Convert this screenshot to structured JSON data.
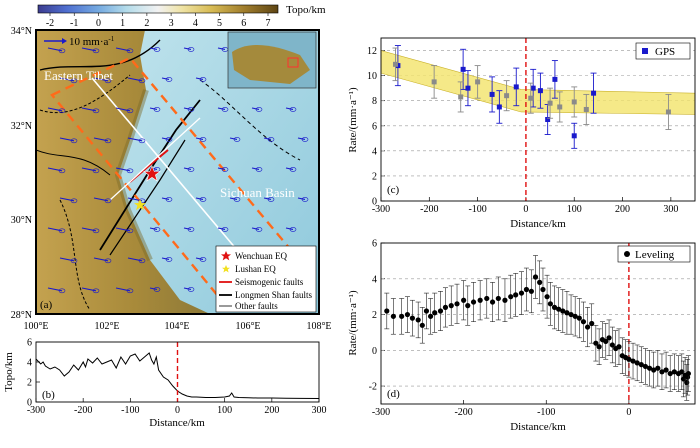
{
  "colors": {
    "gps_blue": "#1a1acc",
    "gps_gray": "#8a8a8a",
    "band_yellow": "#f2e36a",
    "dash_red": "#e01010",
    "cmap": [
      "#3c3c8f",
      "#4f6fd0",
      "#74a9e0",
      "#b4dcea",
      "#f2f2f2",
      "#efe3a4",
      "#d8bc55",
      "#a07d2c",
      "#5e4514"
    ]
  },
  "colorbar": {
    "ticks": [
      "-2",
      "-1",
      "0",
      "1",
      "2",
      "3",
      "4",
      "5",
      "6",
      "7"
    ],
    "unit": "Topo/km"
  },
  "map": {
    "panel_label": "(a)",
    "lat_labels": [
      "34°N",
      "32°N",
      "30°N",
      "28°N"
    ],
    "lon_labels": [
      "100°E",
      "102°E",
      "104°E",
      "106°E",
      "108°E"
    ],
    "scale_text": "10 mm·a",
    "scale_sup": "-1",
    "region_east_tibet": "Eastern Tibet",
    "region_sichuan": "Sichuan Basin",
    "legend": [
      "Wenchuan EQ",
      "Lushan EQ",
      "Seismogenic faults",
      "Longmen Shan faults",
      "Other faults"
    ]
  },
  "chart_data": [
    {
      "id": "b",
      "type": "line",
      "panel_label": "(b)",
      "xlabel": "Distance/km",
      "ylabel": "Topo/km",
      "xlim": [
        -300,
        300
      ],
      "ylim": [
        0,
        6
      ],
      "xticks": [
        -300,
        -200,
        -100,
        0,
        100,
        200,
        300
      ],
      "yticks": [
        0,
        2,
        4,
        6
      ],
      "x": [
        -300,
        -290,
        -285,
        -280,
        -270,
        -260,
        -250,
        -240,
        -230,
        -220,
        -210,
        -200,
        -195,
        -190,
        -180,
        -170,
        -160,
        -150,
        -140,
        -130,
        -120,
        -110,
        -100,
        -90,
        -80,
        -70,
        -60,
        -55,
        -50,
        -45,
        -40,
        -30,
        -20,
        -10,
        0,
        10,
        20,
        30,
        40,
        60,
        80,
        100,
        110,
        115,
        120,
        130,
        150,
        170,
        200,
        230,
        260,
        300
      ],
      "y": [
        4.3,
        3.8,
        4.0,
        3.6,
        3.3,
        3.5,
        3.2,
        2.6,
        3.0,
        3.7,
        3.2,
        4.0,
        3.5,
        4.3,
        3.9,
        4.4,
        3.8,
        4.0,
        4.2,
        3.4,
        4.5,
        3.8,
        4.6,
        4.8,
        4.1,
        4.5,
        4.9,
        4.2,
        3.8,
        4.5,
        3.2,
        2.5,
        2.2,
        1.6,
        1.1,
        0.8,
        0.6,
        0.5,
        0.5,
        0.45,
        0.45,
        0.5,
        0.6,
        0.9,
        0.5,
        0.45,
        0.42,
        0.4,
        0.4,
        0.38,
        0.36,
        0.35
      ]
    },
    {
      "id": "c",
      "type": "scatter",
      "panel_label": "(c)",
      "xlabel": "Distance/km",
      "ylabel": "Rate/(mm·a⁻¹)",
      "legend": "GPS",
      "xlim": [
        -300,
        350
      ],
      "ylim": [
        0,
        13
      ],
      "xticks": [
        -300,
        -200,
        -100,
        0,
        100,
        200,
        300
      ],
      "yticks": [
        0,
        2,
        4,
        6,
        8,
        10,
        12
      ],
      "band_upper": [
        [
          -300,
          12.0
        ],
        [
          -10,
          8.9
        ],
        [
          350,
          8.6
        ]
      ],
      "band_lower": [
        [
          -300,
          10.2
        ],
        [
          -10,
          7.1
        ],
        [
          350,
          6.9
        ]
      ],
      "series": [
        {
          "name": "blue",
          "points": [
            {
              "x": -265,
              "y": 10.8,
              "e": 1.6
            },
            {
              "x": -130,
              "y": 10.5,
              "e": 1.6
            },
            {
              "x": -120,
              "y": 9.0,
              "e": 1.4
            },
            {
              "x": -70,
              "y": 8.5,
              "e": 1.4
            },
            {
              "x": -55,
              "y": 7.5,
              "e": 1.3
            },
            {
              "x": -20,
              "y": 9.1,
              "e": 1.5
            },
            {
              "x": 15,
              "y": 9.0,
              "e": 1.5
            },
            {
              "x": 30,
              "y": 8.8,
              "e": 1.4
            },
            {
              "x": 45,
              "y": 6.5,
              "e": 1.2
            },
            {
              "x": 60,
              "y": 9.7,
              "e": 1.5
            },
            {
              "x": 100,
              "y": 5.2,
              "e": 1.0
            },
            {
              "x": 140,
              "y": 8.6,
              "e": 1.6
            }
          ]
        },
        {
          "name": "gray",
          "points": [
            {
              "x": -270,
              "y": 10.9,
              "e": 1.3
            },
            {
              "x": -190,
              "y": 9.5,
              "e": 1.3
            },
            {
              "x": -100,
              "y": 9.5,
              "e": 1.3
            },
            {
              "x": -135,
              "y": 8.3,
              "e": 1.2
            },
            {
              "x": -40,
              "y": 8.4,
              "e": 1.2
            },
            {
              "x": 10,
              "y": 8.2,
              "e": 1.2
            },
            {
              "x": 50,
              "y": 7.8,
              "e": 1.2
            },
            {
              "x": 70,
              "y": 7.5,
              "e": 1.2
            },
            {
              "x": 100,
              "y": 7.9,
              "e": 1.2
            },
            {
              "x": 125,
              "y": 7.3,
              "e": 1.2
            },
            {
              "x": 295,
              "y": 7.1,
              "e": 1.4
            }
          ]
        }
      ]
    },
    {
      "id": "d",
      "type": "scatter",
      "panel_label": "(d)",
      "xlabel": "Distance/km",
      "ylabel": "Rate/(mm·a⁻¹)",
      "legend": "Leveling",
      "xlim": [
        -300,
        80
      ],
      "ylim": [
        -3,
        6
      ],
      "xticks": [
        -300,
        -200,
        -100,
        0
      ],
      "yticks": [
        -2,
        0,
        2,
        4,
        6
      ],
      "points": [
        {
          "x": -293,
          "y": 2.2,
          "e": 1.0
        },
        {
          "x": -285,
          "y": 1.9,
          "e": 1.0
        },
        {
          "x": -275,
          "y": 1.9,
          "e": 1.0
        },
        {
          "x": -268,
          "y": 2.0,
          "e": 1.0
        },
        {
          "x": -262,
          "y": 1.8,
          "e": 1.0
        },
        {
          "x": -255,
          "y": 1.7,
          "e": 1.0
        },
        {
          "x": -250,
          "y": 1.4,
          "e": 1.0
        },
        {
          "x": -245,
          "y": 2.2,
          "e": 1.0
        },
        {
          "x": -240,
          "y": 1.9,
          "e": 1.0
        },
        {
          "x": -235,
          "y": 2.1,
          "e": 1.1
        },
        {
          "x": -228,
          "y": 2.2,
          "e": 1.1
        },
        {
          "x": -222,
          "y": 2.4,
          "e": 1.1
        },
        {
          "x": -215,
          "y": 2.5,
          "e": 1.1
        },
        {
          "x": -208,
          "y": 2.6,
          "e": 1.1
        },
        {
          "x": -200,
          "y": 2.8,
          "e": 1.1
        },
        {
          "x": -195,
          "y": 2.5,
          "e": 1.1
        },
        {
          "x": -188,
          "y": 2.7,
          "e": 1.1
        },
        {
          "x": -180,
          "y": 2.8,
          "e": 1.1
        },
        {
          "x": -172,
          "y": 2.9,
          "e": 1.1
        },
        {
          "x": -165,
          "y": 2.7,
          "e": 1.1
        },
        {
          "x": -158,
          "y": 2.9,
          "e": 1.2
        },
        {
          "x": -150,
          "y": 2.8,
          "e": 1.2
        },
        {
          "x": -143,
          "y": 3.0,
          "e": 1.2
        },
        {
          "x": -137,
          "y": 3.1,
          "e": 1.2
        },
        {
          "x": -130,
          "y": 3.2,
          "e": 1.2
        },
        {
          "x": -124,
          "y": 3.4,
          "e": 1.2
        },
        {
          "x": -118,
          "y": 3.3,
          "e": 1.2
        },
        {
          "x": -113,
          "y": 4.1,
          "e": 1.2
        },
        {
          "x": -108,
          "y": 3.8,
          "e": 1.2
        },
        {
          "x": -104,
          "y": 3.4,
          "e": 1.2
        },
        {
          "x": -99,
          "y": 3.0,
          "e": 1.2
        },
        {
          "x": -95,
          "y": 2.6,
          "e": 1.2
        },
        {
          "x": -90,
          "y": 2.4,
          "e": 1.2
        },
        {
          "x": -85,
          "y": 2.3,
          "e": 1.2
        },
        {
          "x": -80,
          "y": 2.2,
          "e": 1.2
        },
        {
          "x": -75,
          "y": 2.1,
          "e": 1.2
        },
        {
          "x": -70,
          "y": 2.0,
          "e": 1.1
        },
        {
          "x": -65,
          "y": 1.9,
          "e": 1.1
        },
        {
          "x": -60,
          "y": 1.8,
          "e": 1.1
        },
        {
          "x": -55,
          "y": 1.6,
          "e": 1.1
        },
        {
          "x": -50,
          "y": 1.3,
          "e": 1.1
        },
        {
          "x": -45,
          "y": 1.5,
          "e": 1.1
        },
        {
          "x": -40,
          "y": 0.4,
          "e": 1.0
        },
        {
          "x": -36,
          "y": 0.2,
          "e": 1.0
        },
        {
          "x": -32,
          "y": 0.6,
          "e": 1.0
        },
        {
          "x": -28,
          "y": 0.5,
          "e": 1.0
        },
        {
          "x": -24,
          "y": 0.7,
          "e": 1.0
        },
        {
          "x": -20,
          "y": 0.3,
          "e": 1.0
        },
        {
          "x": -16,
          "y": 0.1,
          "e": 1.0
        },
        {
          "x": -12,
          "y": 0.2,
          "e": 1.0
        },
        {
          "x": -8,
          "y": -0.3,
          "e": 1.0
        },
        {
          "x": -4,
          "y": -0.4,
          "e": 1.0
        },
        {
          "x": 0,
          "y": -0.5,
          "e": 1.0
        },
        {
          "x": 5,
          "y": -0.6,
          "e": 1.0
        },
        {
          "x": 10,
          "y": -0.7,
          "e": 1.0
        },
        {
          "x": 15,
          "y": -0.8,
          "e": 1.0
        },
        {
          "x": 20,
          "y": -0.9,
          "e": 1.0
        },
        {
          "x": 25,
          "y": -1.0,
          "e": 1.0
        },
        {
          "x": 30,
          "y": -1.1,
          "e": 1.0
        },
        {
          "x": 35,
          "y": -1.0,
          "e": 1.0
        },
        {
          "x": 40,
          "y": -1.2,
          "e": 1.0
        },
        {
          "x": 45,
          "y": -1.1,
          "e": 1.0
        },
        {
          "x": 50,
          "y": -1.3,
          "e": 1.0
        },
        {
          "x": 55,
          "y": -1.2,
          "e": 1.0
        },
        {
          "x": 60,
          "y": -1.3,
          "e": 1.0
        },
        {
          "x": 64,
          "y": -1.2,
          "e": 1.0
        },
        {
          "x": 66,
          "y": -1.6,
          "e": 1.0
        },
        {
          "x": 68,
          "y": -1.4,
          "e": 1.0
        },
        {
          "x": 70,
          "y": -1.8,
          "e": 1.0
        },
        {
          "x": 71,
          "y": -1.5,
          "e": 1.0
        },
        {
          "x": 72,
          "y": -1.3,
          "e": 1.0
        }
      ]
    }
  ]
}
